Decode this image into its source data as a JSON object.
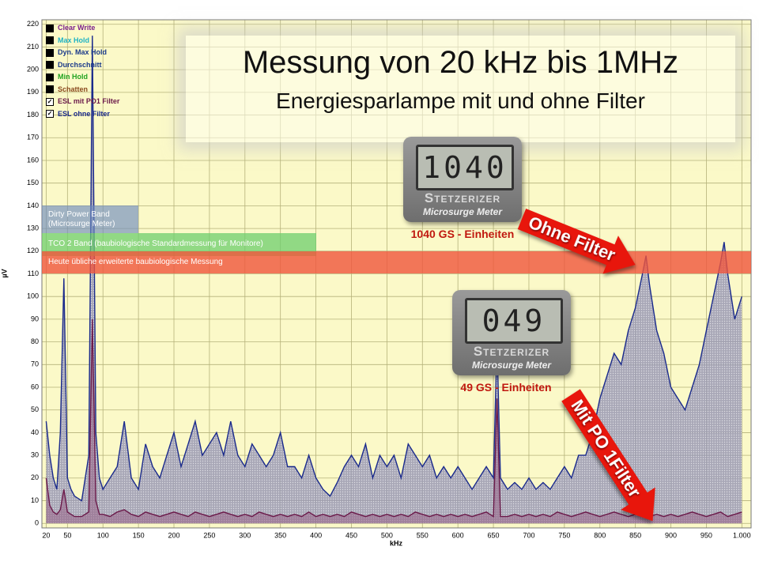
{
  "chart_data": {
    "type": "line",
    "title": "Messung von 20 kHz bis 1MHz",
    "subtitle": "Energiesparlampe mit und ohne Filter",
    "x_label": "kHz",
    "y_label": "µV",
    "xlim": [
      14,
      1013
    ],
    "ylim": [
      -2,
      222
    ],
    "xticks": [
      20,
      50,
      100,
      150,
      200,
      250,
      300,
      350,
      400,
      450,
      500,
      550,
      600,
      650,
      700,
      750,
      800,
      850,
      900,
      950,
      {
        "value": 1000,
        "label": "1.000"
      }
    ],
    "yticks": [
      0,
      10,
      20,
      30,
      40,
      50,
      60,
      70,
      80,
      90,
      100,
      110,
      120,
      130,
      140,
      150,
      160,
      170,
      180,
      190,
      200,
      210,
      220
    ],
    "grid": true,
    "legend_position": "top-left",
    "other_legend_entries": [
      {
        "name": "Clear Write",
        "color": "#7a1f8c"
      },
      {
        "name": "Max Hold",
        "color": "#1fb3c4"
      },
      {
        "name": "Dyn. Max Hold",
        "color": "#1b3a8a"
      },
      {
        "name": "Durchschnitt",
        "color": "#1b3a8a"
      },
      {
        "name": "Min Hold",
        "color": "#21a321"
      },
      {
        "name": "Schatten",
        "color": "#8a4a1e"
      }
    ],
    "x": [
      20,
      25,
      30,
      35,
      40,
      45,
      50,
      55,
      60,
      70,
      80,
      85,
      90,
      95,
      100,
      110,
      120,
      130,
      140,
      150,
      160,
      170,
      180,
      190,
      200,
      210,
      220,
      230,
      240,
      250,
      260,
      270,
      280,
      290,
      300,
      310,
      320,
      330,
      340,
      350,
      360,
      370,
      380,
      390,
      400,
      410,
      420,
      430,
      440,
      450,
      460,
      470,
      480,
      490,
      500,
      510,
      520,
      530,
      540,
      550,
      560,
      570,
      580,
      590,
      600,
      610,
      620,
      630,
      640,
      650,
      655,
      660,
      670,
      680,
      690,
      700,
      710,
      720,
      730,
      740,
      750,
      760,
      770,
      780,
      790,
      800,
      810,
      820,
      830,
      840,
      850,
      860,
      865,
      870,
      880,
      890,
      900,
      910,
      920,
      930,
      940,
      950,
      960,
      970,
      975,
      980,
      990,
      1000
    ],
    "series": [
      {
        "name": "ESL mit PO1 Filter",
        "color": "#6b1a4a",
        "values": [
          20,
          8,
          5,
          4,
          6,
          15,
          5,
          4,
          3,
          3,
          5,
          90,
          10,
          4,
          4,
          3,
          5,
          6,
          4,
          3,
          5,
          4,
          3,
          4,
          5,
          4,
          3,
          5,
          4,
          3,
          4,
          5,
          4,
          3,
          4,
          3,
          5,
          4,
          3,
          4,
          3,
          4,
          3,
          5,
          3,
          4,
          3,
          4,
          3,
          5,
          4,
          3,
          4,
          3,
          4,
          3,
          4,
          3,
          5,
          4,
          3,
          4,
          3,
          4,
          3,
          4,
          3,
          4,
          5,
          3,
          55,
          3,
          3,
          4,
          3,
          4,
          3,
          4,
          3,
          5,
          4,
          3,
          4,
          5,
          4,
          3,
          4,
          5,
          4,
          3,
          4,
          5,
          4,
          3,
          4,
          3,
          4,
          3,
          4,
          5,
          4,
          3,
          4,
          5,
          4,
          3,
          4,
          5
        ]
      },
      {
        "name": "ESL ohne Filter",
        "color": "#1a2a8c",
        "values": [
          45,
          30,
          20,
          15,
          40,
          108,
          20,
          15,
          12,
          10,
          30,
          215,
          40,
          20,
          15,
          20,
          25,
          45,
          20,
          15,
          35,
          25,
          20,
          30,
          40,
          25,
          35,
          45,
          30,
          35,
          40,
          30,
          45,
          30,
          25,
          35,
          30,
          25,
          30,
          40,
          25,
          25,
          20,
          30,
          20,
          15,
          12,
          18,
          25,
          30,
          25,
          35,
          20,
          30,
          25,
          30,
          20,
          35,
          30,
          25,
          30,
          20,
          25,
          20,
          25,
          20,
          15,
          20,
          25,
          20,
          80,
          20,
          15,
          18,
          15,
          20,
          15,
          18,
          15,
          20,
          25,
          20,
          30,
          30,
          40,
          55,
          65,
          75,
          70,
          85,
          95,
          110,
          118,
          105,
          85,
          75,
          60,
          55,
          50,
          60,
          70,
          85,
          100,
          115,
          124,
          110,
          90,
          100
        ]
      }
    ],
    "bands": [
      {
        "label": "Dirty Power Band (Microsurge Meter)",
        "x": [
          14,
          150
        ],
        "y": [
          128,
          140
        ],
        "color": "rgba(110,140,190,0.65)"
      },
      {
        "label": "TCO 2 Band (baubiologische Standardmessung für Monitore)",
        "x": [
          14,
          400
        ],
        "y": [
          118,
          128
        ],
        "color": "rgba(110,205,110,0.75)"
      },
      {
        "label": "Heute übliche erweiterte  baubiologische Messung",
        "x": [
          14,
          1013
        ],
        "y": [
          110,
          120
        ],
        "color": "rgba(240,85,60,0.8)"
      }
    ],
    "meters": [
      {
        "display": "1040",
        "brand": "Stetzerizer",
        "model": "Microsurge Meter",
        "caption": "1040 GS - Einheiten"
      },
      {
        "display": "049",
        "brand": "Stetzerizer",
        "model": "Microsurge Meter",
        "caption": "49 GS - Einheiten"
      }
    ],
    "arrows": [
      "Ohne Filter",
      "Mit PO 1Filter"
    ]
  }
}
